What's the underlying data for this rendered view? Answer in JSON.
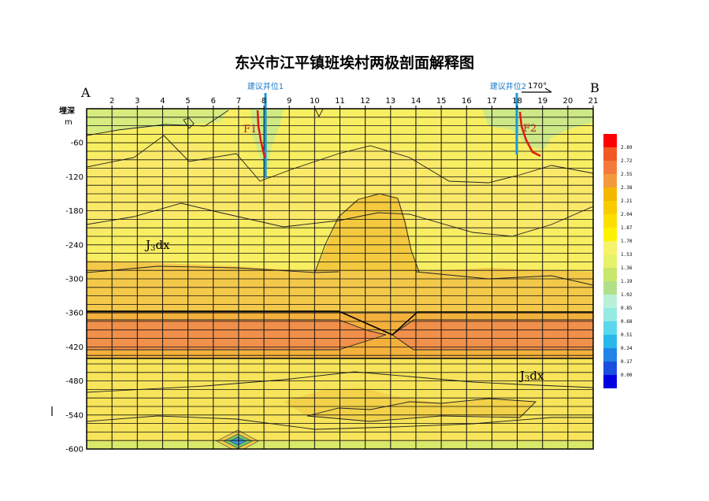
{
  "title": "东兴市江平镇班埃村两极剖面解释图",
  "end_left": "A",
  "end_right": "B",
  "azimuth": "170°",
  "depth_axis": {
    "label": "埋深",
    "unit": "m",
    "ticks": [
      "-60",
      "-120",
      "-180",
      "-240",
      "-300",
      "-360",
      "-420",
      "-480",
      "-540",
      "-600"
    ]
  },
  "stations": [
    "2",
    "3",
    "4",
    "5",
    "6",
    "7",
    "8",
    "9",
    "10",
    "11",
    "12",
    "13",
    "14",
    "15",
    "16",
    "17",
    "18",
    "19",
    "20",
    "21"
  ],
  "wells": [
    {
      "label": "建议井位1",
      "station": 8,
      "depth_to": -120
    },
    {
      "label": "建议井位2",
      "station": 18,
      "depth_to": -80
    }
  ],
  "faults": [
    {
      "label": "F1"
    },
    {
      "label": "F2"
    }
  ],
  "strata": [
    {
      "label": "J",
      "sub": "3",
      "suffix": "dx"
    },
    {
      "label": "J",
      "sub": "3",
      "suffix": "dx"
    }
  ],
  "legend": {
    "colors": [
      "#ff0000",
      "#f15a24",
      "#f47a3c",
      "#f39a3c",
      "#f5b800",
      "#f8cc00",
      "#fce000",
      "#fff200",
      "#f6f26a",
      "#e6f26a",
      "#c7e86a",
      "#b2df8a",
      "#b8f0d8",
      "#96eae2",
      "#5ad7ea",
      "#2ab8ea",
      "#1f84e6",
      "#1a4fe0",
      "#0000e0"
    ],
    "values": [
      "2.89",
      "2.72",
      "2.55",
      "2.38",
      "2.21",
      "2.04",
      "1.87",
      "1.70",
      "1.53",
      "1.36",
      "1.19",
      "1.02",
      "0.85",
      "0.68",
      "0.51",
      "0.34",
      "0.17",
      "0.00"
    ]
  },
  "colors": {
    "background_fill": "#f8ee62",
    "deep_band": "#f0904a",
    "orange_zone": "#f4c24a",
    "green_zone": "#d8ec7c",
    "well": "#1a9ad8",
    "fault": "#e01a10"
  }
}
